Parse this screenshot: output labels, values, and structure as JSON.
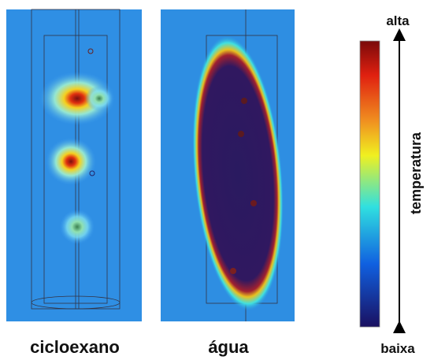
{
  "figure": {
    "panels": [
      {
        "label": "cicloexano"
      },
      {
        "label": "água"
      }
    ],
    "colorbar": {
      "top_label": "alta",
      "bottom_label": "baixa",
      "axis_label": "temperatura"
    }
  }
}
